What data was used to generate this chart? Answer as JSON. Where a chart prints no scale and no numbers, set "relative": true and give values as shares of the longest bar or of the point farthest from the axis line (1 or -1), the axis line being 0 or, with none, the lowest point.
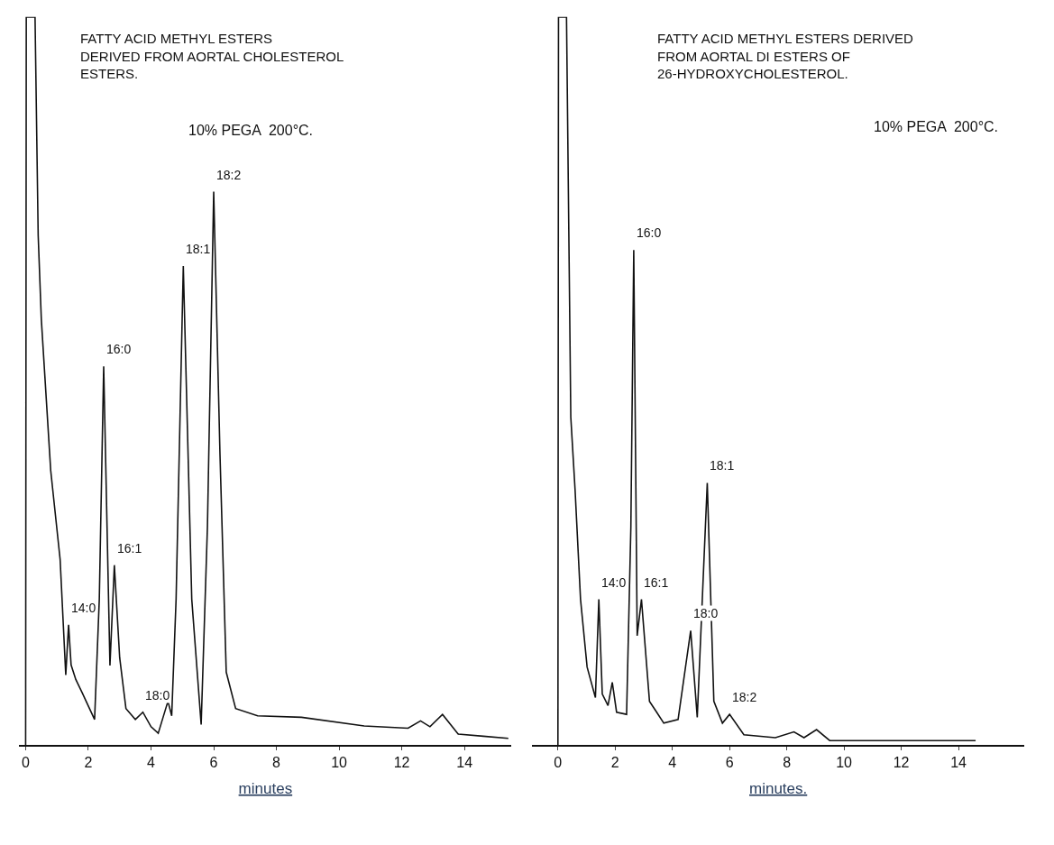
{
  "chart_data": [
    {
      "type": "line",
      "title": "FATTY ACID METHYL ESTERS\nDERIVED FROM AORTAL CHOLESTEROL\nESTERS.",
      "subtitle": "10% PEGA  200°C.",
      "xlabel": "minutes",
      "relative": true,
      "xlim": [
        -0.2,
        15.5
      ],
      "xticks": [
        0,
        2,
        4,
        6,
        8,
        10,
        12,
        14
      ],
      "tick_labels": "x",
      "series": [
        {
          "color": "#111111",
          "x": [
            0,
            0.02,
            0.3,
            0.4,
            0.5,
            0.8,
            1.1,
            1.28,
            1.37,
            1.45,
            1.6,
            1.8,
            2.2,
            2.35,
            2.49,
            2.69,
            2.83,
            3.0,
            3.2,
            3.5,
            3.74,
            4.0,
            4.23,
            4.54,
            4.66,
            4.8,
            5.03,
            5.3,
            5.6,
            5.8,
            6.0,
            6.2,
            6.4,
            6.7,
            7.4,
            8.8,
            10.8,
            12.2,
            12.6,
            12.9,
            13.3,
            13.8,
            14.6,
            15.4
          ],
          "values": [
            0,
            1,
            1,
            0.7,
            0.585,
            0.377,
            0.255,
            0.096,
            0.165,
            0.11,
            0.09,
            0.072,
            0.035,
            0.2,
            0.52,
            0.109,
            0.247,
            0.12,
            0.05,
            0.035,
            0.045,
            0.025,
            0.016,
            0.06,
            0.04,
            0.2,
            0.658,
            0.2,
            0.028,
            0.3,
            0.76,
            0.4,
            0.1,
            0.05,
            0.04,
            0.038,
            0.026,
            0.023,
            0.033,
            0.025,
            0.042,
            0.015,
            0.012,
            0.009
          ]
        }
      ],
      "annotations": [
        {
          "text": "14:0",
          "x": 1.37,
          "y": 0.165
        },
        {
          "text": "16:0",
          "x": 2.49,
          "y": 0.52
        },
        {
          "text": "16:1",
          "x": 2.83,
          "y": 0.247
        },
        {
          "text": "18:0",
          "x": 3.74,
          "y": 0.045
        },
        {
          "text": "18:1",
          "x": 5.03,
          "y": 0.658
        },
        {
          "text": "18:2",
          "x": 6.0,
          "y": 0.76
        }
      ]
    },
    {
      "type": "line",
      "title": "FATTY ACID METHYL ESTERS DERIVED\nFROM AORTAL DI ESTERS OF\n26-HYDROXYCHOLESTEROL.",
      "subtitle": "10% PEGA  200°C.",
      "xlabel": "minutes.",
      "relative": true,
      "xlim": [
        -0.9,
        16.3
      ],
      "xticks": [
        0,
        2,
        4,
        6,
        8,
        10,
        12,
        14
      ],
      "tick_labels": "x",
      "series": [
        {
          "color": "#111111",
          "x": [
            0,
            0.02,
            0.3,
            0.45,
            0.6,
            0.79,
            1.02,
            1.31,
            1.43,
            1.55,
            1.75,
            1.9,
            2.05,
            2.4,
            2.55,
            2.65,
            2.77,
            2.92,
            3.2,
            3.4,
            3.7,
            4.2,
            4.64,
            4.87,
            5.22,
            5.45,
            5.75,
            6.0,
            6.5,
            7.6,
            8.25,
            8.6,
            9.04,
            9.5,
            14.6
          ],
          "values": [
            0,
            1,
            1,
            0.45,
            0.35,
            0.2,
            0.107,
            0.065,
            0.2,
            0.07,
            0.054,
            0.086,
            0.045,
            0.042,
            0.3,
            0.68,
            0.15,
            0.2,
            0.06,
            0.048,
            0.03,
            0.035,
            0.157,
            0.038,
            0.36,
            0.06,
            0.03,
            0.042,
            0.014,
            0.01,
            0.018,
            0.01,
            0.021,
            0.006,
            0.006
          ]
        }
      ],
      "annotations": [
        {
          "text": "14:0",
          "x": 1.43,
          "y": 0.2
        },
        {
          "text": "16:0",
          "x": 2.65,
          "y": 0.68
        },
        {
          "text": "16:1",
          "x": 2.92,
          "y": 0.2
        },
        {
          "text": "18:0",
          "x": 4.64,
          "y": 0.157
        },
        {
          "text": "18:1",
          "x": 5.22,
          "y": 0.36
        },
        {
          "text": "18:2",
          "x": 6.0,
          "y": 0.042
        }
      ]
    }
  ]
}
